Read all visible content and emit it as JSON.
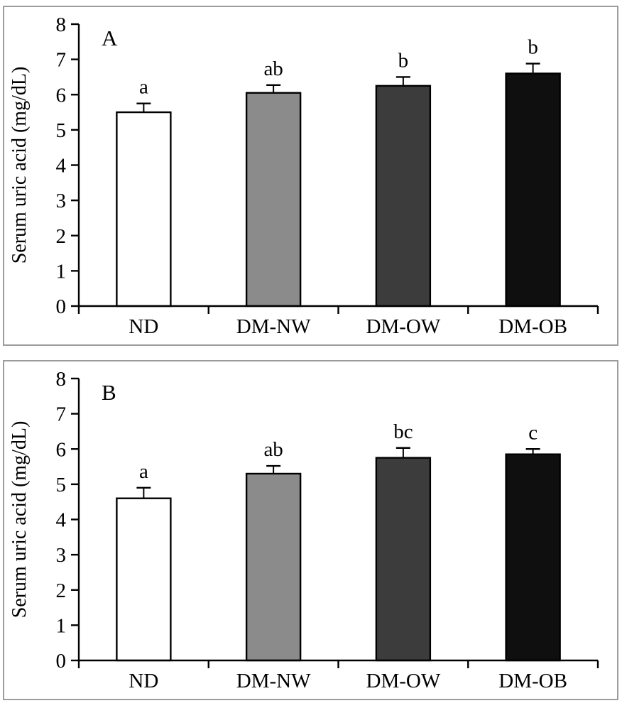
{
  "chart_data": [
    {
      "type": "bar",
      "title": "A",
      "ylabel": "Serum uric acid (mg/dL)",
      "xlabel": "",
      "categories": [
        "ND",
        "DM-NW",
        "DM-OW",
        "DM-OB"
      ],
      "values": [
        5.5,
        6.05,
        6.25,
        6.6
      ],
      "errors_up": [
        0.25,
        0.22,
        0.25,
        0.28
      ],
      "sig_letters": [
        "a",
        "ab",
        "b",
        "b"
      ],
      "bar_colors": [
        "#ffffff",
        "#8b8b8b",
        "#3c3c3c",
        "#0f0f0f"
      ],
      "bar_edge_color": "#000000",
      "ylim": [
        0,
        8
      ],
      "yticks": [
        0,
        1,
        2,
        3,
        4,
        5,
        6,
        7,
        8
      ],
      "grid": false,
      "legend": "none"
    },
    {
      "type": "bar",
      "title": "B",
      "ylabel": "Serum uric acid (mg/dL)",
      "xlabel": "",
      "categories": [
        "ND",
        "DM-NW",
        "DM-OW",
        "DM-OB"
      ],
      "values": [
        4.6,
        5.3,
        5.75,
        5.85
      ],
      "errors_up": [
        0.3,
        0.22,
        0.28,
        0.15
      ],
      "sig_letters": [
        "a",
        "ab",
        "bc",
        "c"
      ],
      "bar_colors": [
        "#ffffff",
        "#8b8b8b",
        "#3c3c3c",
        "#0f0f0f"
      ],
      "bar_edge_color": "#000000",
      "ylim": [
        0,
        8
      ],
      "yticks": [
        0,
        1,
        2,
        3,
        4,
        5,
        6,
        7,
        8
      ],
      "grid": false,
      "legend": "none"
    }
  ]
}
